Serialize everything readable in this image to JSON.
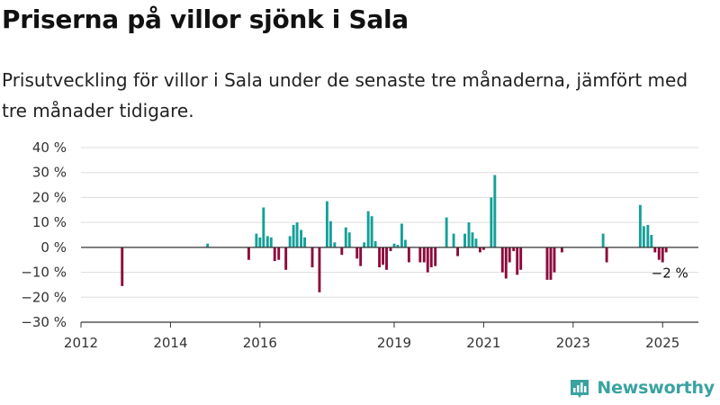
{
  "header": {
    "title": "Priserna på villor sjönk i Sala",
    "subtitle": "Prisutveckling för villor i Sala under de senaste tre månaderna, jämfört med tre månader tidigare."
  },
  "brand": {
    "name": "Newsworthy",
    "icon": "newsworthy-logo-icon"
  },
  "colors": {
    "positive": "#15a09a",
    "negative": "#8c0a3c",
    "axis": "#333333",
    "grid": "#dddddd"
  },
  "chart_data": {
    "type": "bar",
    "title": "",
    "xlabel": "",
    "ylabel": "",
    "ylim": [
      -30,
      40
    ],
    "xlim": [
      2012.0,
      2025.8
    ],
    "y_ticks": [
      -30,
      -20,
      -10,
      0,
      10,
      20,
      30,
      40
    ],
    "y_tick_labels": [
      "−30 %",
      "−20 %",
      "−10 %",
      "0 %",
      "10 %",
      "20 %",
      "30 %",
      "40 %"
    ],
    "x_ticks": [
      2012,
      2014,
      2016,
      2019,
      2021,
      2023,
      2025
    ],
    "x_tick_labels": [
      "2012",
      "2014",
      "2016",
      "2019",
      "2021",
      "2023",
      "2025"
    ],
    "grid": true,
    "legend": "none",
    "annotation": {
      "text": "−2 %",
      "x": 2025.0,
      "y": -2
    },
    "series": [
      {
        "x": [
          2012.92,
          2014.83,
          2015.75,
          2015.92,
          2016.0,
          2016.08,
          2016.17,
          2016.25,
          2016.33,
          2016.42,
          2016.58,
          2016.67,
          2016.75,
          2016.83,
          2016.92,
          2017.0,
          2017.17,
          2017.33,
          2017.5,
          2017.58,
          2017.67,
          2017.83,
          2017.92,
          2018.0,
          2018.17,
          2018.25,
          2018.33,
          2018.42,
          2018.5,
          2018.58,
          2018.67,
          2018.75,
          2018.83,
          2018.92,
          2019.0,
          2019.08,
          2019.17,
          2019.25,
          2019.33,
          2019.58,
          2019.67,
          2019.75,
          2019.83,
          2019.92,
          2020.17,
          2020.33,
          2020.42,
          2020.58,
          2020.67,
          2020.75,
          2020.83,
          2020.92,
          2021.0,
          2021.17,
          2021.25,
          2021.42,
          2021.5,
          2021.58,
          2021.67,
          2021.75,
          2021.83,
          2022.42,
          2022.5,
          2022.58,
          2022.75,
          2023.67,
          2023.75,
          2024.5,
          2024.58,
          2024.67,
          2024.75,
          2024.83,
          2024.92,
          2025.0,
          2025.08
        ],
        "values": [
          -15.5,
          1.5,
          -5,
          5.5,
          4,
          16,
          4.5,
          4,
          -5.5,
          -5,
          -9,
          4.5,
          9,
          10,
          7,
          4,
          -8,
          -18,
          18.5,
          10.5,
          2,
          -3,
          8,
          6,
          -4.5,
          -7.5,
          2,
          14.5,
          12.5,
          2.5,
          -8,
          -7,
          -9,
          -1.5,
          1.5,
          1,
          9.5,
          3,
          -6,
          -6,
          -6,
          -10,
          -8,
          -7.5,
          12,
          5.5,
          -3.5,
          5.5,
          10,
          6,
          3.5,
          -2,
          -1,
          20,
          29,
          -10,
          -12.5,
          -6,
          -1.5,
          -11,
          -9,
          -13,
          -13,
          -10,
          -2,
          5.5,
          -6,
          17,
          8.5,
          9,
          5,
          -2,
          -5,
          -6,
          -2
        ]
      }
    ]
  }
}
